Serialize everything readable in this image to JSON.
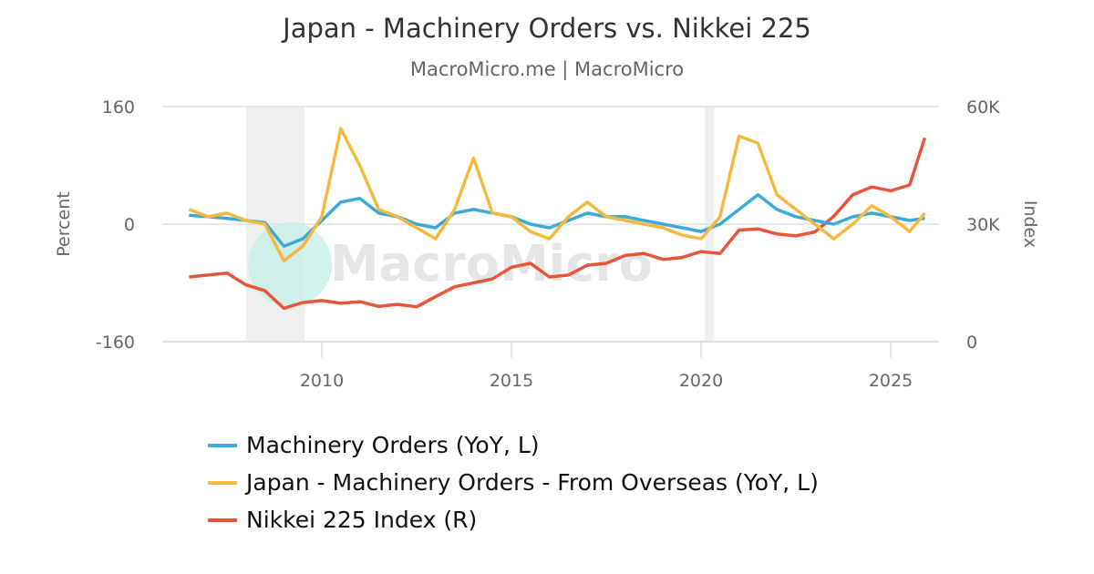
{
  "header": {
    "title": "Japan - Machinery Orders vs. Nikkei 225",
    "subtitle": "MacroMicro.me | MacroMicro"
  },
  "watermark": {
    "text": "MacroMicro"
  },
  "colors": {
    "machinery_orders": "#3aabd8",
    "overseas_orders": "#f5b93f",
    "nikkei": "#e8553a",
    "recession_band": "#eef0f0",
    "grid": "#e0e0e0",
    "watermark_circle": "#c8efe6"
  },
  "chart_data": {
    "type": "line",
    "title": "Japan - Machinery Orders vs. Nikkei 225",
    "subtitle": "MacroMicro.me | MacroMicro",
    "xlabel": "",
    "ylabel_left": "Percent",
    "ylabel_right": "Index",
    "x_ticks": [
      "2010",
      "2015",
      "2020",
      "2025"
    ],
    "y_left_ticks": [
      "160",
      "0",
      "-160"
    ],
    "y_right_ticks": [
      "60K",
      "30K",
      "0"
    ],
    "ylim_left": [
      -160,
      160
    ],
    "ylim_right": [
      0,
      60000
    ],
    "xlim": [
      2006.0,
      2026.2
    ],
    "grid": true,
    "legend_position": "bottom",
    "recession_bands": [
      [
        2008.0,
        2009.55
      ],
      [
        2020.1,
        2020.35
      ]
    ],
    "x": [
      2006.5,
      2007.0,
      2007.5,
      2008.0,
      2008.5,
      2009.0,
      2009.5,
      2010.0,
      2010.5,
      2011.0,
      2011.5,
      2012.0,
      2012.5,
      2013.0,
      2013.5,
      2014.0,
      2014.5,
      2015.0,
      2015.5,
      2016.0,
      2016.5,
      2017.0,
      2017.5,
      2018.0,
      2018.5,
      2019.0,
      2019.5,
      2020.0,
      2020.5,
      2021.0,
      2021.5,
      2022.0,
      2022.5,
      2023.0,
      2023.5,
      2024.0,
      2024.5,
      2025.0,
      2025.5,
      2025.9
    ],
    "series": [
      {
        "name": "Machinery Orders (YoY, L)",
        "axis": "left",
        "values": [
          12,
          10,
          8,
          5,
          2,
          -30,
          -20,
          5,
          30,
          35,
          15,
          10,
          0,
          -5,
          15,
          20,
          15,
          10,
          0,
          -5,
          5,
          15,
          10,
          10,
          5,
          0,
          -5,
          -10,
          0,
          20,
          40,
          20,
          10,
          5,
          0,
          10,
          15,
          10,
          5,
          8
        ]
      },
      {
        "name": "Japan - Machinery Orders - From Overseas (YoY, L)",
        "axis": "left",
        "values": [
          20,
          10,
          15,
          5,
          0,
          -50,
          -30,
          10,
          130,
          80,
          20,
          10,
          -5,
          -20,
          20,
          90,
          15,
          10,
          -10,
          -20,
          10,
          30,
          10,
          5,
          0,
          -5,
          -15,
          -20,
          10,
          120,
          110,
          40,
          20,
          0,
          -20,
          0,
          25,
          10,
          -10,
          15
        ]
      },
      {
        "name": "Nikkei 225 Index (R)",
        "axis": "right",
        "values": [
          16500,
          17000,
          17500,
          14500,
          13000,
          8500,
          10000,
          10500,
          9800,
          10200,
          9000,
          9500,
          8900,
          11500,
          14000,
          15000,
          16000,
          19000,
          20000,
          16500,
          17000,
          19500,
          20000,
          22000,
          22500,
          21000,
          21500,
          23000,
          22500,
          28500,
          28800,
          27500,
          27000,
          28000,
          32000,
          37500,
          39500,
          38500,
          40000,
          52000
        ]
      }
    ]
  },
  "legend": {
    "items": [
      {
        "label": "Machinery Orders (YoY, L)",
        "color": "#3aabd8"
      },
      {
        "label": "Japan - Machinery Orders - From Overseas (YoY, L)",
        "color": "#f5b93f"
      },
      {
        "label": "Nikkei 225 Index (R)",
        "color": "#e8553a"
      }
    ]
  }
}
